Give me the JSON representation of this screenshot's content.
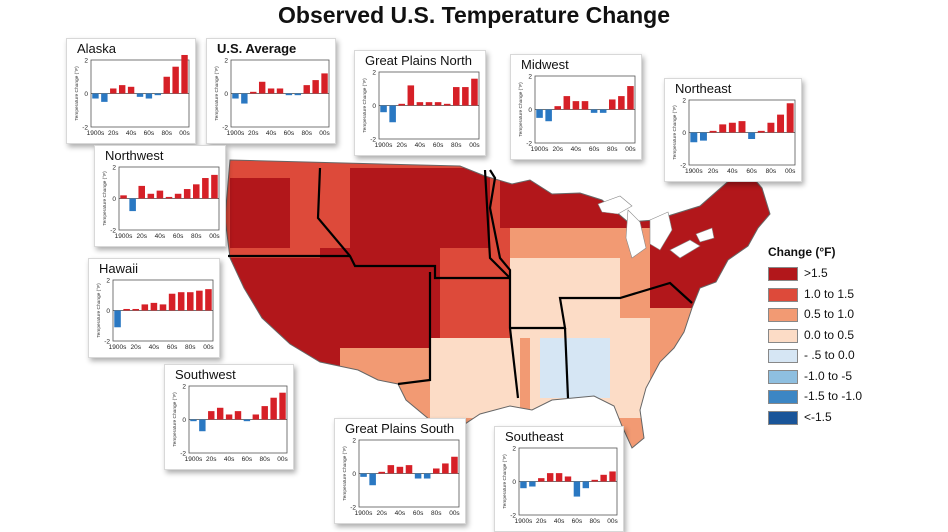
{
  "title": "Observed U.S. Temperature Change",
  "legend": {
    "title": "Change (°F)",
    "items": [
      {
        "label": ">1.5",
        "color": "#b2171b"
      },
      {
        "label": "1.0 to 1.5",
        "color": "#dd4a3a"
      },
      {
        "label": "0.5 to 1.0",
        "color": "#f29a73"
      },
      {
        "label": "0.0 to 0.5",
        "color": "#fcdcc6"
      },
      {
        "label": "- .5 to 0.0",
        "color": "#d6e6f4"
      },
      {
        "label": "-1.0 to -5",
        "color": "#8ebfe0"
      },
      {
        "label": "-1.5 to -1.0",
        "color": "#3c86c4"
      },
      {
        "label": "<-1.5",
        "color": "#1a5599"
      }
    ]
  },
  "colors": {
    "positive": "#d62027",
    "negative": "#2a78c2"
  },
  "chart_data": [
    {
      "type": "bar",
      "title": "Alaska",
      "ylabel": "Temperature Change (°F)",
      "ylim": [
        -2,
        2
      ],
      "yticks": [
        "2",
        "0",
        "-2"
      ],
      "categories": [
        "1900s",
        "10s",
        "20s",
        "30s",
        "40s",
        "50s",
        "60s",
        "70s",
        "80s",
        "90s",
        "00s"
      ],
      "xticklabels": [
        "1900s",
        "20s",
        "40s",
        "60s",
        "80s",
        "00s"
      ],
      "values": [
        -0.3,
        -0.5,
        0.3,
        0.5,
        0.4,
        -0.2,
        -0.3,
        -0.1,
        1.0,
        1.6,
        2.3
      ]
    },
    {
      "type": "bar",
      "title": "U.S. Average",
      "ylabel": "Temperature Change (°F)",
      "ylim": [
        -2,
        2
      ],
      "yticks": [
        "2",
        "0",
        "-2"
      ],
      "categories": [
        "1900s",
        "10s",
        "20s",
        "30s",
        "40s",
        "50s",
        "60s",
        "70s",
        "80s",
        "90s",
        "00s"
      ],
      "xticklabels": [
        "1900s",
        "20s",
        "40s",
        "60s",
        "80s",
        "00s"
      ],
      "values": [
        -0.3,
        -0.6,
        0.1,
        0.7,
        0.3,
        0.3,
        -0.1,
        -0.1,
        0.5,
        0.8,
        1.2
      ]
    },
    {
      "type": "bar",
      "title": "Great Plains North",
      "ylabel": "Temperature Change (°F)",
      "ylim": [
        -2,
        2
      ],
      "yticks": [
        "2",
        "0",
        "-2"
      ],
      "categories": [
        "1900s",
        "10s",
        "20s",
        "30s",
        "40s",
        "50s",
        "60s",
        "70s",
        "80s",
        "90s",
        "00s"
      ],
      "xticklabels": [
        "1900s",
        "20s",
        "40s",
        "60s",
        "80s",
        "00s"
      ],
      "values": [
        -0.4,
        -1.0,
        0.1,
        1.2,
        0.2,
        0.2,
        0.2,
        0.1,
        1.1,
        1.1,
        1.6
      ]
    },
    {
      "type": "bar",
      "title": "Midwest",
      "ylabel": "Temperature Change (°F)",
      "ylim": [
        -2,
        2
      ],
      "yticks": [
        "2",
        "0",
        "-2"
      ],
      "categories": [
        "1900s",
        "10s",
        "20s",
        "30s",
        "40s",
        "50s",
        "60s",
        "70s",
        "80s",
        "90s",
        "00s"
      ],
      "xticklabels": [
        "1900s",
        "20s",
        "40s",
        "60s",
        "80s",
        "00s"
      ],
      "values": [
        -0.5,
        -0.7,
        0.2,
        0.8,
        0.5,
        0.5,
        -0.2,
        -0.2,
        0.6,
        0.8,
        1.4
      ]
    },
    {
      "type": "bar",
      "title": "Northeast",
      "ylabel": "Temperature Change (°F)",
      "ylim": [
        -2,
        2
      ],
      "yticks": [
        "2",
        "0",
        "-2"
      ],
      "categories": [
        "1900s",
        "10s",
        "20s",
        "30s",
        "40s",
        "50s",
        "60s",
        "70s",
        "80s",
        "90s",
        "00s"
      ],
      "xticklabels": [
        "1900s",
        "20s",
        "40s",
        "60s",
        "80s",
        "00s"
      ],
      "values": [
        -0.6,
        -0.5,
        0.1,
        0.5,
        0.6,
        0.7,
        -0.4,
        0.1,
        0.6,
        1.1,
        1.8
      ]
    },
    {
      "type": "bar",
      "title": "Northwest",
      "ylabel": "Temperature Change (°F)",
      "ylim": [
        -2,
        2
      ],
      "yticks": [
        "2",
        "0",
        "-2"
      ],
      "categories": [
        "1900s",
        "10s",
        "20s",
        "30s",
        "40s",
        "50s",
        "60s",
        "70s",
        "80s",
        "90s",
        "00s"
      ],
      "xticklabels": [
        "1900s",
        "20s",
        "40s",
        "60s",
        "80s",
        "00s"
      ],
      "values": [
        0.2,
        -0.8,
        0.8,
        0.3,
        0.5,
        0.1,
        0.3,
        0.6,
        0.9,
        1.3,
        1.5
      ]
    },
    {
      "type": "bar",
      "title": "Hawaii",
      "ylabel": "Temperature Change (°F)",
      "ylim": [
        -2,
        2
      ],
      "yticks": [
        "2",
        "0",
        "-2"
      ],
      "categories": [
        "1900s",
        "10s",
        "20s",
        "30s",
        "40s",
        "50s",
        "60s",
        "70s",
        "80s",
        "90s",
        "00s"
      ],
      "xticklabels": [
        "1900s",
        "20s",
        "40s",
        "60s",
        "80s",
        "00s"
      ],
      "values": [
        -1.1,
        0.1,
        0.1,
        0.4,
        0.5,
        0.4,
        1.1,
        1.2,
        1.2,
        1.3,
        1.4
      ]
    },
    {
      "type": "bar",
      "title": "Southwest",
      "ylabel": "Temperature Change (°F)",
      "ylim": [
        -2,
        2
      ],
      "yticks": [
        "2",
        "0",
        "-2"
      ],
      "categories": [
        "1900s",
        "10s",
        "20s",
        "30s",
        "40s",
        "50s",
        "60s",
        "70s",
        "80s",
        "90s",
        "00s"
      ],
      "xticklabels": [
        "1900s",
        "20s",
        "40s",
        "60s",
        "80s",
        "00s"
      ],
      "values": [
        -0.1,
        -0.7,
        0.5,
        0.7,
        0.3,
        0.5,
        -0.1,
        0.3,
        0.8,
        1.3,
        1.6
      ]
    },
    {
      "type": "bar",
      "title": "Great Plains South",
      "ylabel": "Temperature Change (°F)",
      "ylim": [
        -2,
        2
      ],
      "yticks": [
        "2",
        "0",
        "-2"
      ],
      "categories": [
        "1900s",
        "10s",
        "20s",
        "30s",
        "40s",
        "50s",
        "60s",
        "70s",
        "80s",
        "90s",
        "00s"
      ],
      "xticklabels": [
        "1900s",
        "20s",
        "40s",
        "60s",
        "80s",
        "00s"
      ],
      "values": [
        -0.2,
        -0.7,
        0.1,
        0.5,
        0.4,
        0.5,
        -0.3,
        -0.3,
        0.3,
        0.6,
        1.0
      ]
    },
    {
      "type": "bar",
      "title": "Southeast",
      "ylabel": "Temperature Change (°F)",
      "ylim": [
        -2,
        2
      ],
      "yticks": [
        "2",
        "0",
        "-2"
      ],
      "categories": [
        "1900s",
        "10s",
        "20s",
        "30s",
        "40s",
        "50s",
        "60s",
        "70s",
        "80s",
        "90s",
        "00s"
      ],
      "xticklabels": [
        "1900s",
        "20s",
        "40s",
        "60s",
        "80s",
        "00s"
      ],
      "values": [
        -0.4,
        -0.3,
        0.2,
        0.5,
        0.5,
        0.3,
        -0.9,
        -0.4,
        0.1,
        0.4,
        0.6
      ]
    }
  ]
}
